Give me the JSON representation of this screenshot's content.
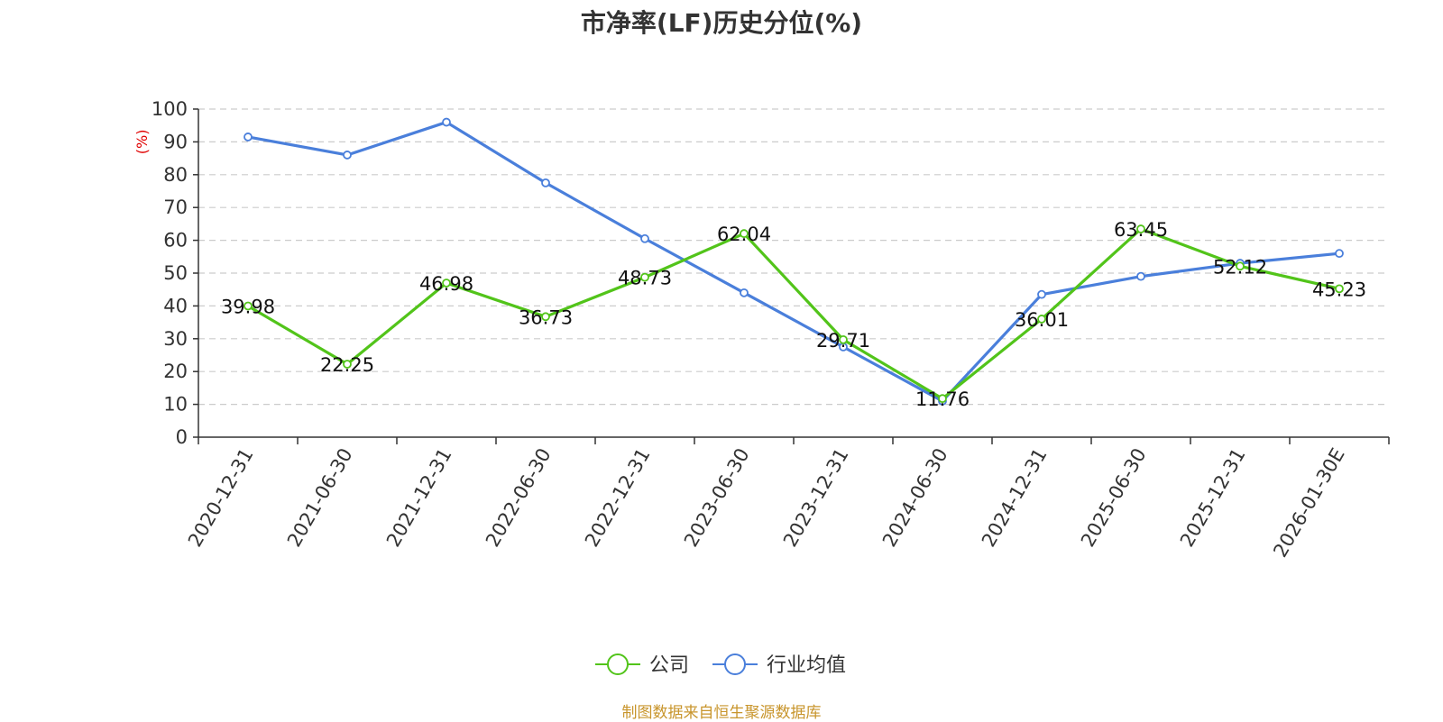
{
  "chart_data": {
    "type": "line",
    "title": "市净率(LF)历史分位(%)",
    "ylabel": "(%)",
    "ylim": [
      0,
      100
    ],
    "yticks": [
      0,
      10,
      20,
      30,
      40,
      50,
      60,
      70,
      80,
      90,
      100
    ],
    "grid": true,
    "legend_position": "bottom",
    "categories": [
      "2020-12-31",
      "2021-06-30",
      "2021-12-31",
      "2022-06-30",
      "2022-12-31",
      "2023-06-30",
      "2023-12-31",
      "2024-06-30",
      "2024-12-31",
      "2025-06-30",
      "2025-12-31",
      "2026-01-30E"
    ],
    "series": [
      {
        "name": "公司",
        "color": "#52c41a",
        "values": [
          39.98,
          22.25,
          46.98,
          36.73,
          48.73,
          62.04,
          29.71,
          11.76,
          36.01,
          63.45,
          52.12,
          45.23
        ],
        "labels": [
          "39.98",
          "22.25",
          "46.98",
          "36.73",
          "48.73",
          "62.04",
          "29.71",
          "11.76",
          "36.01",
          "63.45",
          "52.12",
          "45.23"
        ]
      },
      {
        "name": "行业均值",
        "color": "#4a7fdb",
        "values": [
          91.5,
          86.0,
          96.0,
          77.5,
          60.5,
          44.0,
          27.5,
          11.0,
          43.5,
          49.0,
          53.0,
          56.0
        ]
      }
    ]
  },
  "source": "制图数据来自恒生聚源数据库"
}
